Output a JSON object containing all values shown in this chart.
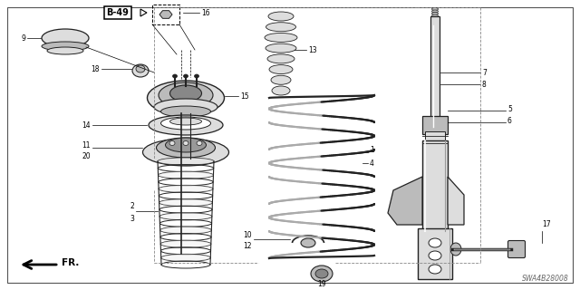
{
  "bg_color": "#ffffff",
  "dark": "#222222",
  "gray": "#999999",
  "light_gray": "#dddddd",
  "med_gray": "#bbbbbb",
  "diagram_code": "SWA4B28008",
  "b49_label": "B-49",
  "fr_label": "FR."
}
